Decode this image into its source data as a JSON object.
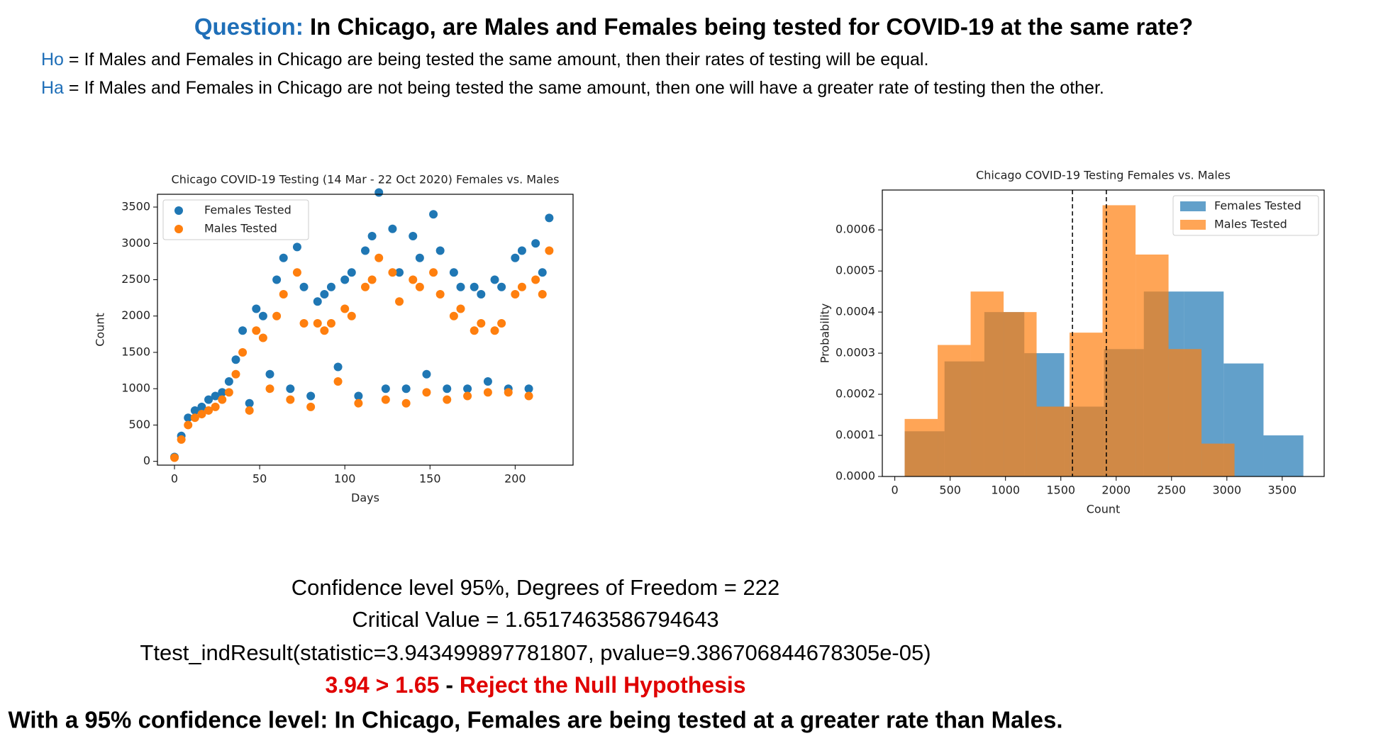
{
  "question": {
    "label": "Question:",
    "text": "In Chicago, are Males and Females being tested for COVID-19 at the same rate?"
  },
  "ho": {
    "label": "Ho",
    "text": "= If Males and Females in Chicago are being tested the same amount, then their rates of testing will be equal."
  },
  "ha": {
    "label": "Ha",
    "text": "= If Males and Females in Chicago are not being tested the same amount, then one will have a greater rate of testing then the other."
  },
  "chart_data": [
    {
      "type": "scatter",
      "title": "Chicago COVID-19 Testing (14 Mar - 22 Oct 2020) Females vs. Males",
      "x_label": "Days",
      "y_label": "Count",
      "xlim": [
        -10,
        234
      ],
      "ylim": [
        -52,
        3676
      ],
      "xticks": [
        0,
        50,
        100,
        150,
        200
      ],
      "yticks": [
        0,
        500,
        1000,
        1500,
        2000,
        2500,
        3000,
        3500
      ],
      "legend": "upper left",
      "x": [
        0,
        4,
        8,
        12,
        16,
        20,
        24,
        28,
        32,
        36,
        40,
        44,
        48,
        52,
        56,
        60,
        64,
        68,
        72,
        76,
        80,
        84,
        88,
        92,
        96,
        100,
        104,
        108,
        112,
        116,
        120,
        124,
        128,
        132,
        136,
        140,
        144,
        148,
        152,
        156,
        160,
        164,
        168,
        172,
        176,
        180,
        184,
        188,
        192,
        196,
        200,
        204,
        208,
        212,
        216,
        220
      ],
      "series": [
        {
          "name": "Females Tested",
          "color": "#1f77b4",
          "values": [
            60,
            350,
            600,
            700,
            750,
            850,
            900,
            950,
            1100,
            1400,
            1800,
            800,
            2100,
            2000,
            1200,
            2500,
            2800,
            1000,
            2950,
            2400,
            900,
            2200,
            2300,
            2400,
            1300,
            2500,
            2600,
            900,
            2900,
            3100,
            3700,
            1000,
            3200,
            2600,
            1000,
            3100,
            2800,
            1200,
            3400,
            2900,
            1000,
            2600,
            2400,
            1000,
            2400,
            2300,
            1100,
            2500,
            2400,
            1000,
            2800,
            2900,
            1000,
            3000,
            2600,
            3350
          ]
        },
        {
          "name": "Males Tested",
          "color": "#ff7f0e",
          "values": [
            50,
            300,
            500,
            600,
            650,
            700,
            750,
            850,
            950,
            1200,
            1500,
            700,
            1800,
            1700,
            1000,
            2000,
            2300,
            850,
            2600,
            1900,
            750,
            1900,
            1800,
            1900,
            1100,
            2100,
            2000,
            800,
            2400,
            2500,
            2800,
            850,
            2600,
            2200,
            800,
            2500,
            2400,
            950,
            2600,
            2300,
            850,
            2000,
            2100,
            900,
            1800,
            1900,
            950,
            1800,
            1900,
            950,
            2300,
            2400,
            900,
            2500,
            2300,
            2900
          ]
        }
      ]
    },
    {
      "type": "histogram",
      "title": "Chicago COVID-19 Testing Females vs. Males",
      "x_label": "Count",
      "y_label": "Probability",
      "xlim": [
        -113,
        3879
      ],
      "ylim": [
        0,
        0.000697
      ],
      "xticks": [
        0,
        500,
        1000,
        1500,
        2000,
        2500,
        3000,
        3500
      ],
      "yticks": [
        {
          "value": 0,
          "label": "0.0000"
        },
        0.0001,
        0.0002,
        0.0003,
        0.0004,
        0.0005,
        0.0006
      ],
      "legend": "upper right",
      "series": [
        {
          "name": "Females Tested",
          "color": "#1f77b4",
          "mean": 1911,
          "bins": [
            89,
            449,
            809,
            1170,
            1530,
            1890,
            2250,
            2611,
            2971,
            3331,
            3691
          ],
          "values": [
            0.00011,
            0.00028,
            0.0004,
            0.0003,
            0.00017,
            0.00031,
            0.00045,
            0.00045,
            0.000275,
            0.0001
          ]
        },
        {
          "name": "Males Tested",
          "color": "#ff7f0e",
          "mean": 1605,
          "bins": [
            89,
            387,
            685,
            983,
            1281,
            1579,
            1877,
            2175,
            2473,
            2771,
            3069
          ],
          "values": [
            0.00014,
            0.00032,
            0.00045,
            0.0004,
            0.00017,
            0.00035,
            0.00066,
            0.00054,
            0.00031,
            8e-05
          ]
        }
      ]
    }
  ],
  "results": {
    "line1": "Confidence level 95%, Degrees of Freedom = 222",
    "line2": "Critical Value = 1.6517463586794643",
    "line3": "Ttest_indResult(statistic=3.943499897781807, pvalue=9.386706844678305e-05)",
    "comparison": "3.94 > 1.65",
    "separator": "-",
    "decision": "Reject the Null Hypothesis",
    "conclusion": "With a 95% confidence level: In Chicago, Females are being tested at a greater rate than Males."
  }
}
